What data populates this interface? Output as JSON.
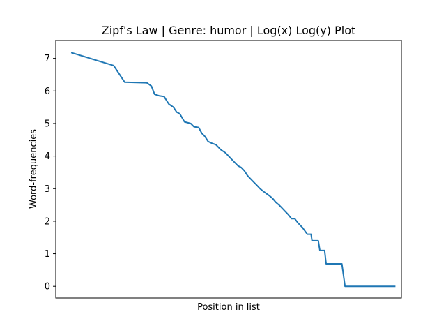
{
  "chart_data": {
    "type": "line",
    "title": "Zipf's Law | Genre: humor | Log(x) Log(y) Plot",
    "xlabel": "Position in list",
    "ylabel": "Word-frequencies",
    "xlim": [
      -0.49,
      10.49
    ],
    "ylim": [
      -0.36,
      7.55
    ],
    "y_ticks": [
      0,
      1,
      2,
      3,
      4,
      5,
      6,
      7
    ],
    "x_ticks": [],
    "grid": false,
    "legend": "none",
    "line_color": "#1f77b4",
    "series": [
      {
        "x": [
          0,
          1.35,
          1.7,
          2.4,
          2.55,
          2.65,
          2.8,
          2.95,
          3.1,
          3.25,
          3.35,
          3.45,
          3.6,
          3.72,
          3.8,
          3.9,
          4.05,
          4.15,
          4.25,
          4.35,
          4.45,
          4.6,
          4.75,
          4.9,
          5.0,
          5.1,
          5.2,
          5.3,
          5.4,
          5.5,
          5.6,
          5.7,
          5.8,
          5.9,
          6.0,
          6.1,
          6.2,
          6.3,
          6.4,
          6.5,
          6.6,
          6.7,
          6.8,
          6.9,
          7.0,
          7.1,
          7.2,
          7.35,
          7.5,
          7.62,
          7.65,
          7.85,
          7.9,
          8.05,
          8.1,
          8.3,
          8.4,
          8.6,
          8.7,
          8.95,
          9.0,
          10.3
        ],
        "y": [
          7.18,
          6.78,
          6.27,
          6.25,
          6.15,
          5.9,
          5.85,
          5.83,
          5.6,
          5.5,
          5.35,
          5.3,
          5.05,
          5.02,
          5.0,
          4.9,
          4.88,
          4.7,
          4.6,
          4.45,
          4.4,
          4.35,
          4.2,
          4.1,
          4.0,
          3.9,
          3.8,
          3.7,
          3.65,
          3.55,
          3.4,
          3.3,
          3.2,
          3.1,
          3.0,
          2.92,
          2.85,
          2.78,
          2.7,
          2.58,
          2.5,
          2.4,
          2.3,
          2.2,
          2.08,
          2.08,
          1.95,
          1.8,
          1.6,
          1.6,
          1.4,
          1.4,
          1.1,
          1.1,
          0.69,
          0.69,
          0.69,
          0.69,
          0.0,
          0.0,
          0.0,
          0.0
        ]
      }
    ]
  }
}
